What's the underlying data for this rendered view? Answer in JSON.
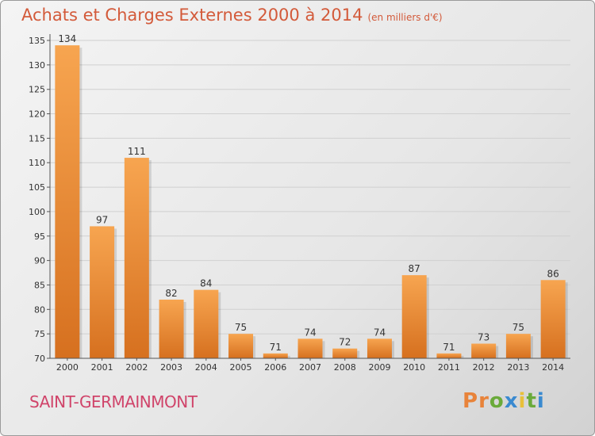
{
  "title": "Achats et Charges Externes 2000 à 2014",
  "subtitle": "(en milliers d'€)",
  "commune": "SAINT-GERMAINMONT",
  "logo": {
    "letters": [
      "P",
      "r",
      "o",
      "x",
      "i",
      "t",
      "i"
    ],
    "colors": [
      "#e8833a",
      "#e8833a",
      "#6aaa3a",
      "#3a8ad0",
      "#e8c03a",
      "#6aaa3a",
      "#3a8ad0"
    ]
  },
  "chart_data": {
    "type": "bar",
    "title": "Achats et Charges Externes 2000 à 2014",
    "subtitle": "(en milliers d'€)",
    "categories": [
      "2000",
      "2001",
      "2002",
      "2003",
      "2004",
      "2005",
      "2006",
      "2007",
      "2008",
      "2009",
      "2010",
      "2011",
      "2012",
      "2013",
      "2014"
    ],
    "values": [
      134,
      97,
      111,
      82,
      84,
      75,
      71,
      74,
      72,
      74,
      87,
      71,
      73,
      75,
      86
    ],
    "ylim": [
      70,
      135
    ],
    "yticks": [
      70,
      75,
      80,
      85,
      90,
      95,
      100,
      105,
      110,
      115,
      120,
      125,
      130,
      135
    ],
    "grid": true,
    "bar_color": "#f0913a"
  }
}
